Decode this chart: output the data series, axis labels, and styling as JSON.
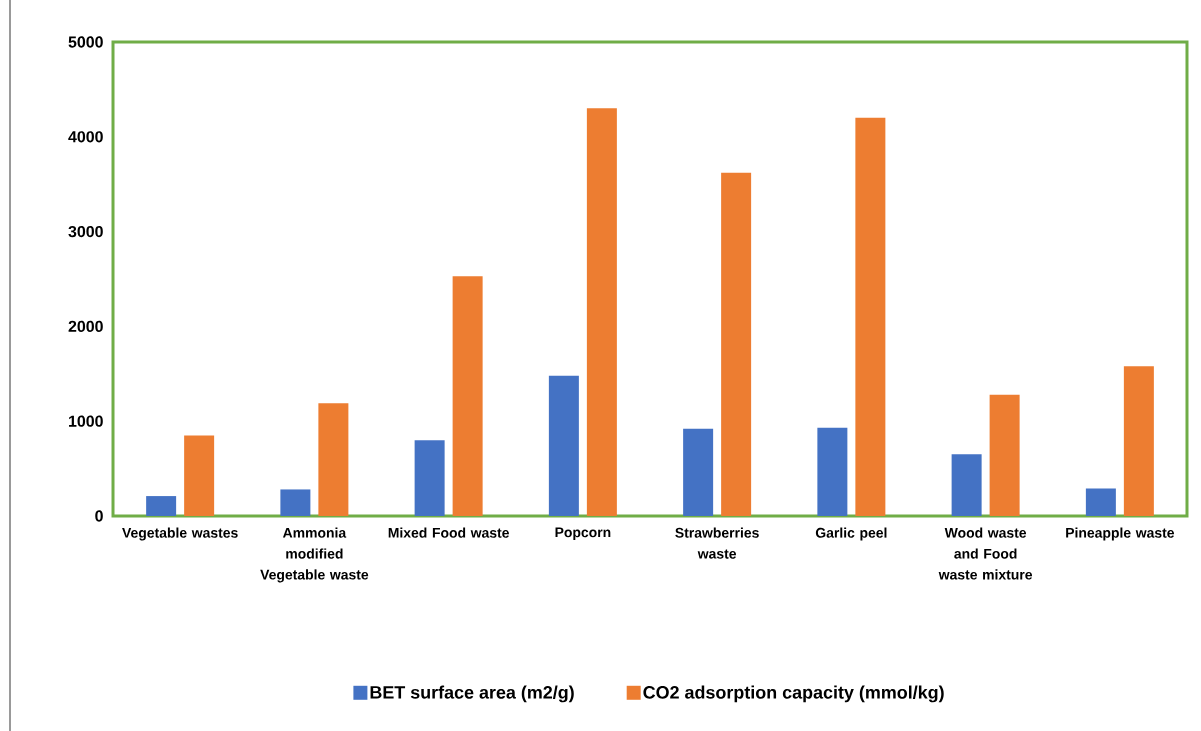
{
  "chart_data": {
    "type": "bar",
    "categories": [
      "Vegetable wastes",
      "Ammonia modified Vegetable waste",
      "Mixed Food waste",
      "Popcorn",
      "Strawberries waste",
      "Garlic peel",
      "Wood waste and Food waste mixture",
      "Pineapple waste"
    ],
    "series": [
      {
        "name": "BET surface area (m2/g)",
        "color": "#4472c4",
        "values": [
          210,
          280,
          800,
          1480,
          920,
          930,
          650,
          290
        ]
      },
      {
        "name": "CO2 adsorption capacity (mmol/kg)",
        "color": "#ed7d31",
        "values": [
          850,
          1190,
          2530,
          4300,
          3620,
          4200,
          1280,
          1580
        ]
      }
    ],
    "ylim": [
      0,
      5000
    ],
    "yticks": [
      0,
      1000,
      2000,
      3000,
      4000,
      5000
    ],
    "legend": "bottom"
  }
}
